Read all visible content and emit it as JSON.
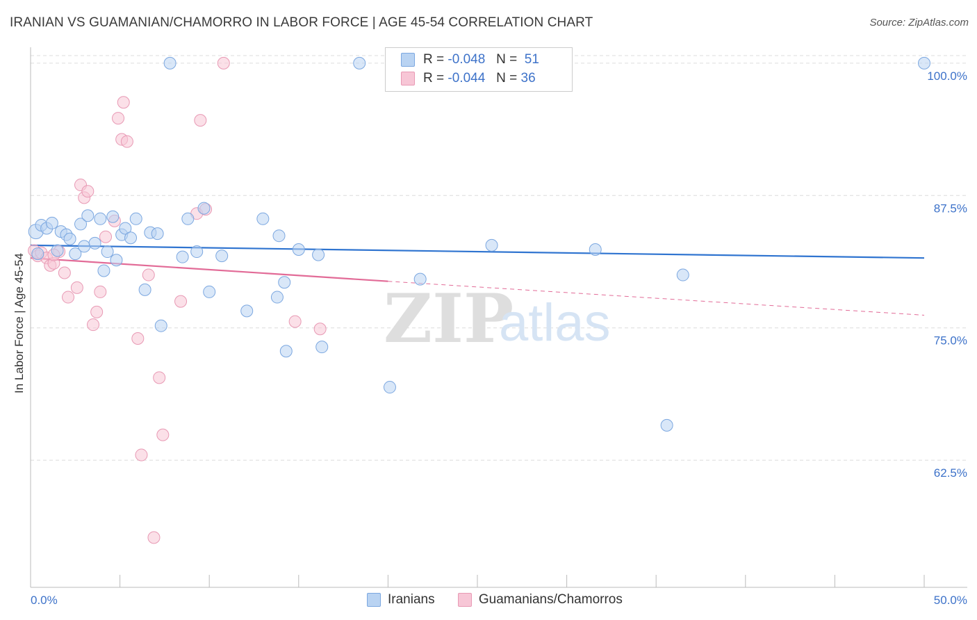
{
  "title": "IRANIAN VS GUAMANIAN/CHAMORRO IN LABOR FORCE | AGE 45-54 CORRELATION CHART",
  "source": "Source: ZipAtlas.com",
  "watermark": {
    "zip": "ZIP",
    "atlas": "atlas"
  },
  "legend": {
    "rows": [
      {
        "r_label": "R =",
        "r_value": "-0.048",
        "n_label": "N =",
        "n_value": "51"
      },
      {
        "r_label": "R =",
        "r_value": "-0.044",
        "n_label": "N =",
        "n_value": "36"
      }
    ]
  },
  "bottom_legend": [
    "Iranians",
    "Guamanians/Chamorros"
  ],
  "chart_data": {
    "type": "scatter",
    "title": "IRANIAN VS GUAMANIAN/CHAMORRO IN LABOR FORCE | AGE 45-54 CORRELATION CHART",
    "xlabel": "",
    "ylabel": "In Labor Force | Age 45-54",
    "xlim": [
      0,
      50
    ],
    "ylim": [
      50.5,
      101.5
    ],
    "x_tick_labels": [
      "0.0%",
      "50.0%"
    ],
    "y_ticks": [
      62.5,
      75.0,
      87.5,
      100.0
    ],
    "y_tick_labels": [
      "62.5%",
      "75.0%",
      "87.5%",
      "100.0%"
    ],
    "grid": true,
    "colors": {
      "iranians_fill": "#b9d3f2",
      "iranians_stroke": "#7ba7e0",
      "iranians_line": "#2f74d0",
      "guam_fill": "#f7c6d6",
      "guam_stroke": "#e899b4",
      "guam_line": "#e26b97",
      "tick_label": "#3d72c9"
    },
    "series": [
      {
        "name": "Iranians",
        "r": -0.048,
        "n": 51,
        "trend": {
          "x": [
            0,
            50
          ],
          "y": [
            82.8,
            81.6
          ]
        },
        "points": [
          [
            0.3,
            84.1
          ],
          [
            0.6,
            84.7
          ],
          [
            0.9,
            84.4
          ],
          [
            1.2,
            84.9
          ],
          [
            1.5,
            82.3
          ],
          [
            1.7,
            84.1
          ],
          [
            2.0,
            83.8
          ],
          [
            2.2,
            83.4
          ],
          [
            2.5,
            82.0
          ],
          [
            2.8,
            84.8
          ],
          [
            3.0,
            82.7
          ],
          [
            3.2,
            85.6
          ],
          [
            3.6,
            83.0
          ],
          [
            3.9,
            85.3
          ],
          [
            4.1,
            80.4
          ],
          [
            4.3,
            82.2
          ],
          [
            4.6,
            85.5
          ],
          [
            4.8,
            81.4
          ],
          [
            5.1,
            83.8
          ],
          [
            5.3,
            84.4
          ],
          [
            5.6,
            83.5
          ],
          [
            5.9,
            85.3
          ],
          [
            6.4,
            78.6
          ],
          [
            6.7,
            84.0
          ],
          [
            7.1,
            83.9
          ],
          [
            7.3,
            75.2
          ],
          [
            7.8,
            100.0
          ],
          [
            8.5,
            81.7
          ],
          [
            8.8,
            85.3
          ],
          [
            9.3,
            82.2
          ],
          [
            9.7,
            86.3
          ],
          [
            10.0,
            78.4
          ],
          [
            10.7,
            81.8
          ],
          [
            12.1,
            76.6
          ],
          [
            13.0,
            85.3
          ],
          [
            13.9,
            83.7
          ],
          [
            13.8,
            77.9
          ],
          [
            14.2,
            79.3
          ],
          [
            14.3,
            72.8
          ],
          [
            15.0,
            82.4
          ],
          [
            16.1,
            81.9
          ],
          [
            16.3,
            73.2
          ],
          [
            18.4,
            100.0
          ],
          [
            20.1,
            69.4
          ],
          [
            21.8,
            79.6
          ],
          [
            25.8,
            82.8
          ],
          [
            31.6,
            82.4
          ],
          [
            35.6,
            65.8
          ],
          [
            36.5,
            80.0
          ],
          [
            50.0,
            100.0
          ],
          [
            0.4,
            82.0
          ]
        ]
      },
      {
        "name": "Guamanians/Chamorros",
        "r": -0.044,
        "n": 36,
        "trend": {
          "x": [
            0,
            20
          ],
          "y": [
            81.6,
            79.4
          ]
        },
        "trend_dashed": {
          "x": [
            20,
            50
          ],
          "y": [
            79.4,
            76.2
          ]
        },
        "points": [
          [
            0.2,
            82.3
          ],
          [
            0.4,
            81.8
          ],
          [
            0.6,
            82.1
          ],
          [
            0.9,
            81.6
          ],
          [
            1.1,
            80.9
          ],
          [
            1.3,
            81.1
          ],
          [
            1.6,
            82.2
          ],
          [
            1.9,
            80.2
          ],
          [
            2.1,
            77.9
          ],
          [
            2.6,
            78.8
          ],
          [
            2.8,
            88.5
          ],
          [
            3.0,
            87.3
          ],
          [
            3.2,
            87.9
          ],
          [
            3.5,
            75.3
          ],
          [
            3.7,
            76.5
          ],
          [
            3.9,
            78.4
          ],
          [
            4.2,
            83.6
          ],
          [
            4.7,
            85.1
          ],
          [
            4.9,
            94.8
          ],
          [
            5.1,
            92.8
          ],
          [
            5.4,
            92.6
          ],
          [
            5.2,
            96.3
          ],
          [
            6.0,
            74.0
          ],
          [
            6.2,
            63.0
          ],
          [
            6.6,
            80.0
          ],
          [
            6.9,
            55.2
          ],
          [
            7.2,
            70.3
          ],
          [
            7.4,
            64.9
          ],
          [
            8.4,
            77.5
          ],
          [
            9.3,
            85.8
          ],
          [
            9.5,
            94.6
          ],
          [
            9.8,
            86.2
          ],
          [
            10.8,
            100.0
          ],
          [
            14.8,
            75.6
          ],
          [
            16.2,
            74.9
          ],
          [
            1.3,
            81.9
          ]
        ]
      }
    ]
  }
}
